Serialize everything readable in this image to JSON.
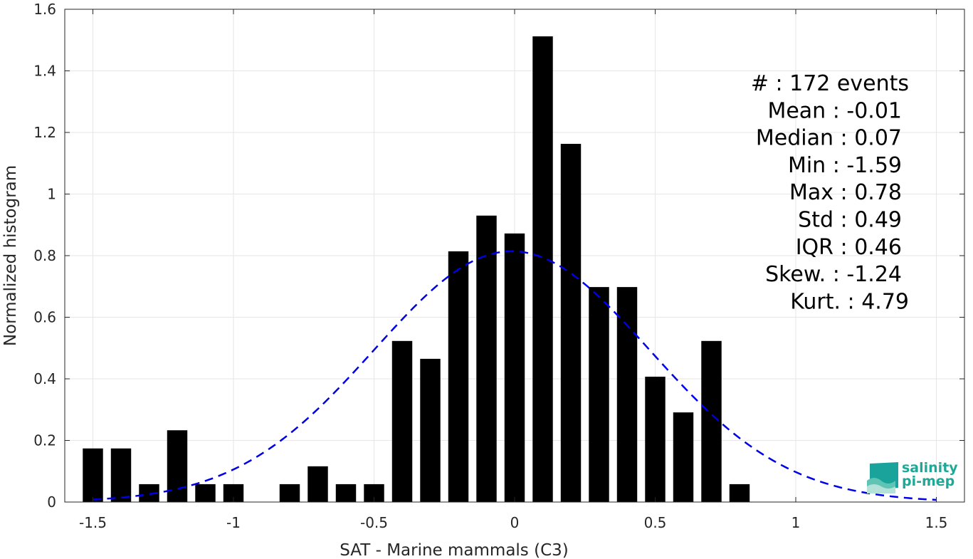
{
  "chart_data": {
    "type": "bar",
    "xlabel": "SAT - Marine mammals (C3)",
    "ylabel": "Normalized histogram",
    "xlim": [
      -1.6,
      1.6
    ],
    "ylim": [
      0,
      1.6
    ],
    "xticks": [
      "-1.5",
      "-1",
      "-0.5",
      "0",
      "0.5",
      "1",
      "1.5"
    ],
    "yticks": [
      "0",
      "0.2",
      "0.4",
      "0.6",
      "0.8",
      "1",
      "1.2",
      "1.4",
      "1.6"
    ],
    "grid": true,
    "bin_width": 0.1,
    "bins": [
      {
        "x": -1.5,
        "y": 0.174
      },
      {
        "x": -1.4,
        "y": 0.174
      },
      {
        "x": -1.3,
        "y": 0.058
      },
      {
        "x": -1.2,
        "y": 0.233
      },
      {
        "x": -1.1,
        "y": 0.058
      },
      {
        "x": -1.0,
        "y": 0.058
      },
      {
        "x": -0.8,
        "y": 0.058
      },
      {
        "x": -0.7,
        "y": 0.116
      },
      {
        "x": -0.6,
        "y": 0.058
      },
      {
        "x": -0.5,
        "y": 0.058
      },
      {
        "x": -0.4,
        "y": 0.523
      },
      {
        "x": -0.3,
        "y": 0.465
      },
      {
        "x": -0.2,
        "y": 0.814
      },
      {
        "x": -0.1,
        "y": 0.93
      },
      {
        "x": 0.0,
        "y": 0.872
      },
      {
        "x": 0.1,
        "y": 1.512
      },
      {
        "x": 0.2,
        "y": 1.163
      },
      {
        "x": 0.3,
        "y": 0.698
      },
      {
        "x": 0.4,
        "y": 0.698
      },
      {
        "x": 0.5,
        "y": 0.407
      },
      {
        "x": 0.6,
        "y": 0.291
      },
      {
        "x": 0.7,
        "y": 0.523
      },
      {
        "x": 0.8,
        "y": 0.058
      }
    ],
    "fit_curve": {
      "type": "normal",
      "mean": -0.01,
      "std": 0.49,
      "style": "dashed",
      "color": "#0000e6",
      "x_range": [
        -1.5,
        1.5
      ]
    },
    "bar_color": "#000000",
    "annotations": [
      "#  : 172 events",
      "Mean : -0.01",
      "Median : 0.07",
      "Min : -1.59",
      "Max : 0.78",
      "Std : 0.49",
      "IQR : 0.46",
      "Skew. : -1.24",
      "Kurt. : 4.79"
    ]
  },
  "logo": {
    "line1": "salinity",
    "line2": "pi-mep"
  }
}
